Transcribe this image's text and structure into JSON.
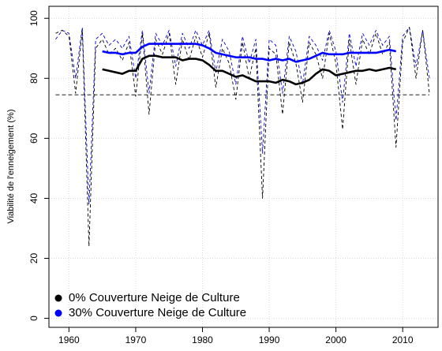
{
  "chart_data": {
    "type": "line",
    "ylabel": "Viabilité de l'enneigement (%)",
    "x": [
      1958,
      1959,
      1960,
      1961,
      1962,
      1963,
      1964,
      1965,
      1966,
      1967,
      1968,
      1969,
      1970,
      1971,
      1972,
      1973,
      1974,
      1975,
      1976,
      1977,
      1978,
      1979,
      1980,
      1981,
      1982,
      1983,
      1984,
      1985,
      1986,
      1987,
      1988,
      1989,
      1990,
      1991,
      1992,
      1993,
      1994,
      1995,
      1996,
      1997,
      1998,
      1999,
      2000,
      2001,
      2002,
      2003,
      2004,
      2005,
      2006,
      2007,
      2008,
      2009,
      2010,
      2011,
      2012,
      2013,
      2014
    ],
    "series": [
      {
        "color": "#0000cd",
        "dashed": true,
        "values": [
          93,
          96,
          95,
          80,
          97,
          38,
          93,
          95,
          91,
          93,
          90,
          94,
          80,
          96,
          75,
          95,
          91,
          96,
          84,
          95,
          90,
          96,
          91,
          96,
          82,
          93,
          89,
          78,
          94,
          85,
          93,
          55,
          93,
          91,
          75,
          94,
          89,
          78,
          94,
          91,
          86,
          96,
          89,
          72,
          95,
          84,
          95,
          91,
          96,
          91,
          94,
          66,
          94,
          97,
          84,
          96,
          80
        ]
      },
      {
        "color": "#000000",
        "dashed": true,
        "values": [
          95,
          96,
          94,
          75,
          96,
          24,
          90,
          93,
          88,
          90,
          86,
          92,
          74,
          95,
          68,
          93,
          88,
          95,
          78,
          93,
          86,
          94,
          87,
          95,
          77,
          90,
          85,
          73,
          92,
          80,
          90,
          40,
          90,
          88,
          68,
          92,
          85,
          72,
          92,
          88,
          80,
          95,
          85,
          63,
          93,
          78,
          93,
          88,
          95,
          88,
          92,
          57,
          92,
          97,
          80,
          96,
          75
        ]
      },
      {
        "name": "0% Couverture Neige de Culture",
        "color": "#000000",
        "values": [
          null,
          null,
          null,
          null,
          null,
          null,
          null,
          83,
          82.5,
          82,
          81.5,
          82.5,
          82.5,
          86.5,
          87.5,
          87.5,
          87,
          87,
          87,
          86,
          86.5,
          86.5,
          86,
          84.5,
          82.5,
          82.5,
          81.5,
          80.5,
          81,
          80,
          79,
          79,
          79,
          78.5,
          79.5,
          79,
          78,
          78.5,
          79.5,
          81.5,
          83,
          82.5,
          81,
          81.5,
          82,
          82.5,
          82.5,
          83,
          82.5,
          83,
          83.5,
          83,
          null,
          null,
          null,
          null,
          null
        ]
      },
      {
        "name": "30% Couverture Neige de Culture",
        "color": "#0000ff",
        "values": [
          null,
          null,
          null,
          null,
          null,
          null,
          null,
          89,
          88.5,
          88.5,
          88,
          88.5,
          88.5,
          90.5,
          91.5,
          91.5,
          91.5,
          91.5,
          91.5,
          91.5,
          91.5,
          91.5,
          91,
          90,
          88.5,
          88,
          87.5,
          87,
          87,
          87,
          86.5,
          86.5,
          86,
          86.5,
          86,
          86.5,
          85.5,
          86,
          86.5,
          87.5,
          88.5,
          88,
          88,
          88,
          88.5,
          88.5,
          88.5,
          88.5,
          88.5,
          89,
          89.5,
          89,
          null,
          null,
          null,
          null,
          null
        ]
      }
    ],
    "hline": 74.5,
    "xlim": [
      1957,
      2015.3
    ],
    "xticks": [
      1960,
      1970,
      1980,
      1990,
      2000,
      2010
    ],
    "ylim": [
      -3,
      104
    ],
    "yticks": [
      0,
      20,
      40,
      60,
      80,
      100
    ],
    "grid": true,
    "legend": "lower left"
  }
}
